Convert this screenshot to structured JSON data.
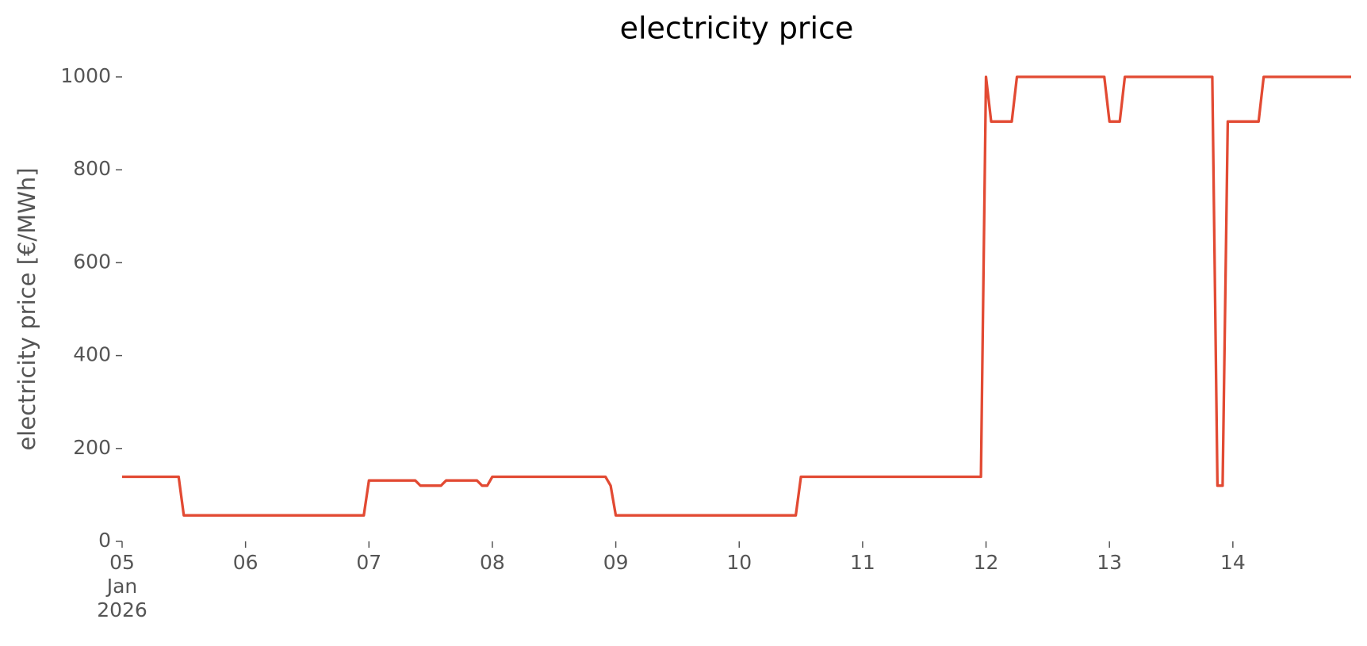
{
  "chart_data": {
    "type": "line",
    "title": "electricity price",
    "y_label": "electricity price [€/MWh]",
    "x": [
      "2026-01-05T00:00",
      "2026-01-05T11:00",
      "2026-01-05T12:00",
      "2026-01-06T23:00",
      "2026-01-07T00:00",
      "2026-01-07T09:00",
      "2026-01-07T10:00",
      "2026-01-07T14:00",
      "2026-01-07T15:00",
      "2026-01-07T21:00",
      "2026-01-07T22:00",
      "2026-01-07T23:00",
      "2026-01-08T00:00",
      "2026-01-08T22:00",
      "2026-01-08T23:00",
      "2026-01-09T00:00",
      "2026-01-10T11:00",
      "2026-01-10T12:00",
      "2026-01-11T23:00",
      "2026-01-12T00:00",
      "2026-01-12T01:00",
      "2026-01-12T05:00",
      "2026-01-12T06:00",
      "2026-01-12T23:00",
      "2026-01-13T00:00",
      "2026-01-13T02:00",
      "2026-01-13T03:00",
      "2026-01-13T20:00",
      "2026-01-13T21:00",
      "2026-01-13T22:00",
      "2026-01-13T23:00",
      "2026-01-14T05:00",
      "2026-01-14T06:00",
      "2026-01-14T23:00"
    ],
    "series": [
      {
        "color": "#e24a33",
        "values": [
          139,
          139,
          56,
          56,
          131,
          131,
          120,
          120,
          131,
          131,
          120,
          120,
          139,
          139,
          120,
          56,
          56,
          139,
          139,
          1000,
          904,
          904,
          1000,
          1000,
          904,
          904,
          1000,
          1000,
          120,
          120,
          904,
          904,
          1000,
          1000
        ]
      }
    ],
    "xlim": [
      "2026-01-05T00:00",
      "2026-01-14T23:00"
    ],
    "xticks": [
      {
        "value": "2026-01-05T00:00",
        "label": "05\nJan\n2026"
      },
      {
        "value": "2026-01-06T00:00",
        "label": "06"
      },
      {
        "value": "2026-01-07T00:00",
        "label": "07"
      },
      {
        "value": "2026-01-08T00:00",
        "label": "08"
      },
      {
        "value": "2026-01-09T00:00",
        "label": "09"
      },
      {
        "value": "2026-01-10T00:00",
        "label": "10"
      },
      {
        "value": "2026-01-11T00:00",
        "label": "11"
      },
      {
        "value": "2026-01-12T00:00",
        "label": "12"
      },
      {
        "value": "2026-01-13T00:00",
        "label": "13"
      },
      {
        "value": "2026-01-14T00:00",
        "label": "14"
      }
    ],
    "ylim": [
      0,
      1000
    ],
    "yticks": [
      0,
      200,
      400,
      600,
      800,
      1000
    ],
    "grid": false
  }
}
